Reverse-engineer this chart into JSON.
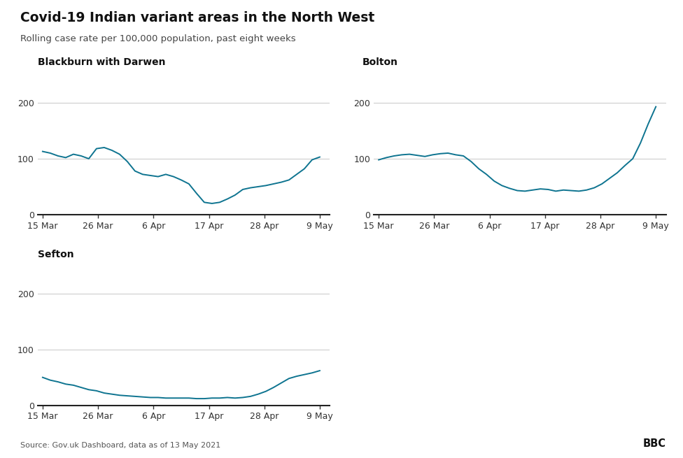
{
  "title": "Covid-19 Indian variant areas in the North West",
  "subtitle": "Rolling case rate per 100,000 population, past eight weeks",
  "source": "Source: Gov.uk Dashboard, data as of 13 May 2021",
  "line_color": "#0e7490",
  "background_color": "#ffffff",
  "x_tick_labels": [
    "15 Mar",
    "26 Mar",
    "6 Apr",
    "17 Apr",
    "28 Apr",
    "9 May"
  ],
  "x_tick_positions": [
    0,
    11,
    22,
    33,
    44,
    55
  ],
  "charts": [
    {
      "title": "Blackburn with Darwen",
      "ylim": [
        0,
        220
      ],
      "yticks": [
        0,
        100,
        200
      ],
      "data": [
        113,
        110,
        105,
        102,
        108,
        105,
        100,
        118,
        120,
        115,
        108,
        95,
        78,
        72,
        70,
        68,
        72,
        68,
        62,
        55,
        38,
        22,
        20,
        22,
        28,
        35,
        45,
        48,
        50,
        52,
        55,
        58,
        62,
        72,
        82,
        98,
        103
      ]
    },
    {
      "title": "Bolton",
      "ylim": [
        0,
        220
      ],
      "yticks": [
        0,
        100,
        200
      ],
      "data": [
        98,
        102,
        105,
        107,
        108,
        106,
        104,
        107,
        109,
        110,
        107,
        105,
        95,
        82,
        72,
        60,
        52,
        47,
        43,
        42,
        44,
        46,
        45,
        42,
        44,
        43,
        42,
        44,
        48,
        55,
        65,
        75,
        88,
        100,
        128,
        162,
        193
      ]
    },
    {
      "title": "Sefton",
      "ylim": [
        0,
        220
      ],
      "yticks": [
        0,
        100,
        200
      ],
      "data": [
        50,
        45,
        42,
        38,
        36,
        32,
        28,
        26,
        22,
        20,
        18,
        17,
        16,
        15,
        14,
        14,
        13,
        13,
        13,
        13,
        12,
        12,
        13,
        13,
        14,
        13,
        14,
        16,
        20,
        25,
        32,
        40,
        48,
        52,
        55,
        58,
        62
      ]
    }
  ]
}
